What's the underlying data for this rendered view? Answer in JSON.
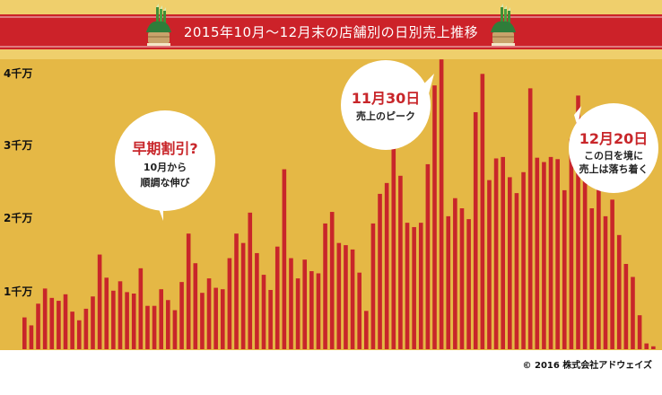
{
  "chart_data": {
    "type": "bar",
    "title": "2015年10月～12月末の店舗別の日別売上推移",
    "xlabel": "",
    "ylabel": "",
    "y_ticks": [
      "1千万",
      "2千万",
      "3千万",
      "4千万"
    ],
    "ylim": [
      0,
      4.1
    ],
    "grid": false,
    "legend": "none",
    "colors": {
      "bar": "#c8262a",
      "plot_bg": "#e5b845",
      "title_bg": "#cc2229",
      "frame_bg": "#efcf6c"
    },
    "values": [
      0.44,
      0.33,
      0.63,
      0.84,
      0.71,
      0.67,
      0.76,
      0.52,
      0.4,
      0.56,
      0.73,
      1.31,
      0.99,
      0.81,
      0.94,
      0.79,
      0.77,
      1.12,
      0.6,
      0.6,
      0.83,
      0.68,
      0.54,
      0.93,
      1.6,
      1.19,
      0.78,
      0.98,
      0.85,
      0.83,
      1.26,
      1.6,
      1.47,
      1.89,
      1.33,
      1.03,
      0.82,
      1.42,
      2.49,
      1.26,
      0.98,
      1.24,
      1.08,
      1.05,
      1.74,
      1.9,
      1.47,
      1.44,
      1.38,
      1.06,
      0.53,
      1.74,
      2.15,
      2.3,
      3.01,
      2.4,
      1.75,
      1.69,
      1.75,
      2.56,
      3.65,
      4.01,
      1.84,
      2.09,
      1.95,
      1.8,
      3.28,
      3.81,
      2.34,
      2.64,
      2.66,
      2.38,
      2.16,
      2.45,
      3.61,
      2.65,
      2.59,
      2.66,
      2.63,
      2.2,
      2.91,
      3.51,
      2.49,
      1.95,
      2.63,
      1.84,
      2.07,
      1.58,
      1.18,
      1.0,
      0.47,
      0.08,
      0.04
    ]
  },
  "annotations": {
    "early_discount": {
      "headline": "早期割引?",
      "line1": "10月から",
      "line2": "順調な伸び"
    },
    "peak": {
      "headline": "11月30日",
      "line1": "売上のピーク"
    },
    "slowdown": {
      "headline": "12月20日",
      "line1": "この日を境に",
      "line2": "売上は落ち着く"
    }
  },
  "footer": {
    "copyright": "© 2016 株式会社アドウェイズ"
  },
  "icons": [
    "kadomatsu-icon"
  ]
}
